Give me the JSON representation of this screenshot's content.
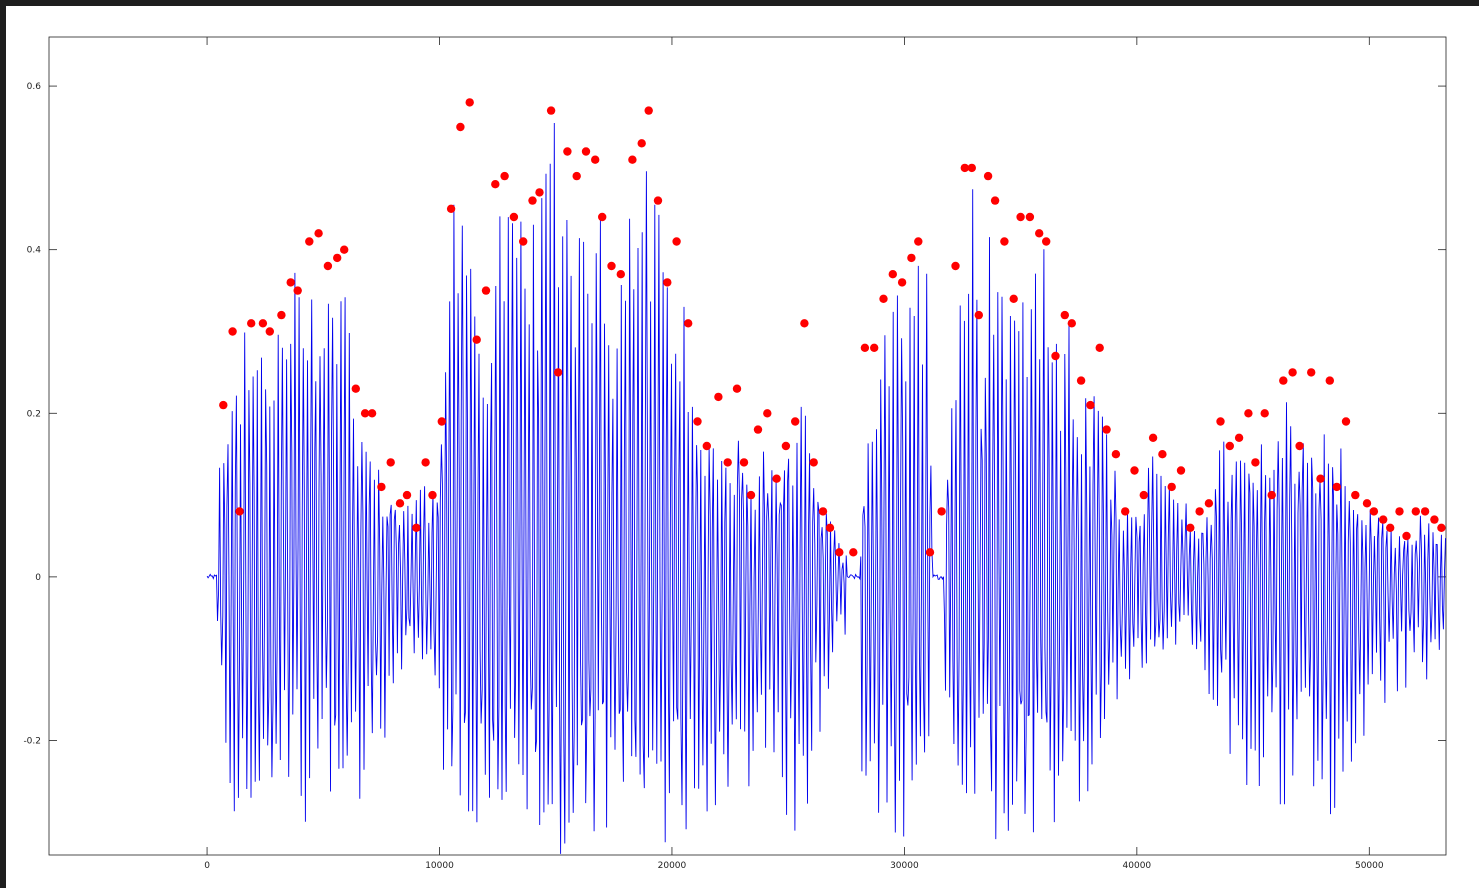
{
  "chart_data": {
    "type": "line",
    "title": "",
    "xlabel": "",
    "ylabel": "",
    "xlim": [
      -6800,
      53300
    ],
    "ylim": [
      -0.34,
      0.66
    ],
    "x_ticks": [
      0,
      10000,
      20000,
      30000,
      40000,
      50000
    ],
    "y_ticks": [
      -0.2,
      0,
      0.2,
      0.4,
      0.6
    ],
    "x_tick_labels": [
      "0",
      "10000",
      "20000",
      "30000",
      "40000",
      "50000"
    ],
    "y_tick_labels": [
      "-0.2",
      "0",
      "0.2",
      "0.4",
      "0.6"
    ],
    "grid": false,
    "legend": "none",
    "series": [
      {
        "kind": "waveform",
        "color": "#0000ee",
        "x_range": [
          0,
          53300
        ],
        "silent_segments": [
          [
            0,
            420
          ],
          [
            27500,
            28100
          ],
          [
            31200,
            31700
          ]
        ],
        "envelope_max": [
          [
            420,
            0.1
          ],
          [
            700,
            0.21
          ],
          [
            1000,
            0.3
          ],
          [
            1500,
            0.3
          ],
          [
            2000,
            0.31
          ],
          [
            2500,
            0.31
          ],
          [
            3000,
            0.32
          ],
          [
            3500,
            0.36
          ],
          [
            4000,
            0.41
          ],
          [
            4500,
            0.42
          ],
          [
            5000,
            0.38
          ],
          [
            5500,
            0.39
          ],
          [
            6000,
            0.4
          ],
          [
            6400,
            0.23
          ],
          [
            6800,
            0.2
          ],
          [
            7200,
            0.2
          ],
          [
            7500,
            0.11
          ],
          [
            8000,
            0.14
          ],
          [
            8300,
            0.09
          ],
          [
            8800,
            0.1
          ],
          [
            9300,
            0.14
          ],
          [
            9700,
            0.1
          ],
          [
            10100,
            0.19
          ],
          [
            10500,
            0.45
          ],
          [
            11000,
            0.55
          ],
          [
            11300,
            0.58
          ],
          [
            11600,
            0.29
          ],
          [
            12000,
            0.35
          ],
          [
            12500,
            0.48
          ],
          [
            13000,
            0.49
          ],
          [
            13500,
            0.44
          ],
          [
            14000,
            0.46
          ],
          [
            14500,
            0.47
          ],
          [
            14800,
            0.57
          ],
          [
            15100,
            0.59
          ],
          [
            15500,
            0.52
          ],
          [
            16000,
            0.49
          ],
          [
            16500,
            0.52
          ],
          [
            17000,
            0.51
          ],
          [
            17500,
            0.38
          ],
          [
            18000,
            0.37
          ],
          [
            18300,
            0.51
          ],
          [
            18700,
            0.53
          ],
          [
            19000,
            0.57
          ],
          [
            19400,
            0.46
          ],
          [
            19800,
            0.36
          ],
          [
            20200,
            0.41
          ],
          [
            20700,
            0.31
          ],
          [
            21000,
            0.19
          ],
          [
            21500,
            0.16
          ],
          [
            22000,
            0.22
          ],
          [
            22500,
            0.14
          ],
          [
            23000,
            0.23
          ],
          [
            23300,
            0.14
          ],
          [
            23600,
            0.1
          ],
          [
            24000,
            0.18
          ],
          [
            24500,
            0.12
          ],
          [
            25000,
            0.16
          ],
          [
            25400,
            0.19
          ],
          [
            25700,
            0.31
          ],
          [
            26100,
            0.14
          ],
          [
            26600,
            0.08
          ],
          [
            27000,
            0.06
          ],
          [
            27300,
            0.03
          ],
          [
            27500,
            0.02
          ],
          [
            28100,
            0.03
          ],
          [
            28500,
            0.28
          ],
          [
            29000,
            0.28
          ],
          [
            29400,
            0.34
          ],
          [
            29800,
            0.37
          ],
          [
            30200,
            0.36
          ],
          [
            30600,
            0.39
          ],
          [
            31000,
            0.41
          ],
          [
            31200,
            0.03
          ],
          [
            31700,
            0.08
          ],
          [
            32200,
            0.38
          ],
          [
            32700,
            0.5
          ],
          [
            33000,
            0.5
          ],
          [
            33300,
            0.32
          ],
          [
            33600,
            0.49
          ],
          [
            34000,
            0.46
          ],
          [
            34500,
            0.41
          ],
          [
            34800,
            0.34
          ],
          [
            35100,
            0.44
          ],
          [
            35500,
            0.44
          ],
          [
            35900,
            0.42
          ],
          [
            36200,
            0.41
          ],
          [
            36600,
            0.27
          ],
          [
            36900,
            0.32
          ],
          [
            37200,
            0.31
          ],
          [
            37600,
            0.24
          ],
          [
            38000,
            0.21
          ],
          [
            38400,
            0.28
          ],
          [
            38700,
            0.18
          ],
          [
            39100,
            0.15
          ],
          [
            39500,
            0.08
          ],
          [
            39900,
            0.13
          ],
          [
            40300,
            0.1
          ],
          [
            40700,
            0.17
          ],
          [
            41100,
            0.15
          ],
          [
            41500,
            0.11
          ],
          [
            41900,
            0.13
          ],
          [
            42300,
            0.06
          ],
          [
            42700,
            0.08
          ],
          [
            43100,
            0.09
          ],
          [
            43600,
            0.19
          ],
          [
            44000,
            0.16
          ],
          [
            44500,
            0.17
          ],
          [
            44800,
            0.2
          ],
          [
            45100,
            0.14
          ],
          [
            45500,
            0.2
          ],
          [
            45800,
            0.1
          ],
          [
            46200,
            0.24
          ],
          [
            46600,
            0.25
          ],
          [
            46900,
            0.16
          ],
          [
            47300,
            0.25
          ],
          [
            47700,
            0.12
          ],
          [
            48100,
            0.24
          ],
          [
            48500,
            0.11
          ],
          [
            48900,
            0.19
          ],
          [
            49300,
            0.1
          ],
          [
            49800,
            0.09
          ],
          [
            50200,
            0.08
          ],
          [
            50600,
            0.07
          ],
          [
            51000,
            0.06
          ],
          [
            51500,
            0.05
          ],
          [
            51900,
            0.07
          ],
          [
            52300,
            0.08
          ],
          [
            52700,
            0.07
          ],
          [
            53000,
            0.06
          ],
          [
            53300,
            0.06
          ]
        ],
        "envelope_min": [
          [
            420,
            -0.05
          ],
          [
            1000,
            -0.3
          ],
          [
            3000,
            -0.3
          ],
          [
            5000,
            -0.3
          ],
          [
            6500,
            -0.28
          ],
          [
            7500,
            -0.22
          ],
          [
            8500,
            -0.12
          ],
          [
            9500,
            -0.1
          ],
          [
            10300,
            -0.3
          ],
          [
            12000,
            -0.34
          ],
          [
            14000,
            -0.34
          ],
          [
            16000,
            -0.34
          ],
          [
            18000,
            -0.34
          ],
          [
            20000,
            -0.34
          ],
          [
            21000,
            -0.3
          ],
          [
            22500,
            -0.28
          ],
          [
            24000,
            -0.26
          ],
          [
            25500,
            -0.34
          ],
          [
            26500,
            -0.18
          ],
          [
            27300,
            -0.05
          ],
          [
            28300,
            -0.28
          ],
          [
            30000,
            -0.34
          ],
          [
            31000,
            -0.2
          ],
          [
            32500,
            -0.34
          ],
          [
            34000,
            -0.34
          ],
          [
            36000,
            -0.34
          ],
          [
            37500,
            -0.3
          ],
          [
            39000,
            -0.2
          ],
          [
            40500,
            -0.1
          ],
          [
            42000,
            -0.08
          ],
          [
            43500,
            -0.2
          ],
          [
            45000,
            -0.28
          ],
          [
            47000,
            -0.3
          ],
          [
            48500,
            -0.3
          ],
          [
            50000,
            -0.18
          ],
          [
            51500,
            -0.14
          ],
          [
            53300,
            -0.12
          ]
        ]
      },
      {
        "kind": "peaks",
        "color": "#ff0000",
        "points": [
          [
            700,
            0.21
          ],
          [
            1100,
            0.3
          ],
          [
            1400,
            0.08
          ],
          [
            1900,
            0.31
          ],
          [
            2400,
            0.31
          ],
          [
            2700,
            0.3
          ],
          [
            3200,
            0.32
          ],
          [
            3600,
            0.36
          ],
          [
            3900,
            0.35
          ],
          [
            4400,
            0.41
          ],
          [
            4800,
            0.42
          ],
          [
            5200,
            0.38
          ],
          [
            5600,
            0.39
          ],
          [
            5900,
            0.4
          ],
          [
            6400,
            0.23
          ],
          [
            6800,
            0.2
          ],
          [
            7100,
            0.2
          ],
          [
            7500,
            0.11
          ],
          [
            7900,
            0.14
          ],
          [
            8300,
            0.09
          ],
          [
            8600,
            0.1
          ],
          [
            9000,
            0.06
          ],
          [
            9400,
            0.14
          ],
          [
            9700,
            0.1
          ],
          [
            10100,
            0.19
          ],
          [
            10500,
            0.45
          ],
          [
            10900,
            0.55
          ],
          [
            11300,
            0.58
          ],
          [
            11600,
            0.29
          ],
          [
            12000,
            0.35
          ],
          [
            12400,
            0.48
          ],
          [
            12800,
            0.49
          ],
          [
            13200,
            0.44
          ],
          [
            13600,
            0.41
          ],
          [
            14000,
            0.46
          ],
          [
            14300,
            0.47
          ],
          [
            14800,
            0.57
          ],
          [
            15100,
            0.25
          ],
          [
            15500,
            0.52
          ],
          [
            15900,
            0.49
          ],
          [
            16300,
            0.52
          ],
          [
            16700,
            0.51
          ],
          [
            17000,
            0.44
          ],
          [
            17400,
            0.38
          ],
          [
            17800,
            0.37
          ],
          [
            18300,
            0.51
          ],
          [
            18700,
            0.53
          ],
          [
            19000,
            0.57
          ],
          [
            19400,
            0.46
          ],
          [
            19800,
            0.36
          ],
          [
            20200,
            0.41
          ],
          [
            20700,
            0.31
          ],
          [
            21100,
            0.19
          ],
          [
            21500,
            0.16
          ],
          [
            22000,
            0.22
          ],
          [
            22400,
            0.14
          ],
          [
            22800,
            0.23
          ],
          [
            23100,
            0.14
          ],
          [
            23400,
            0.1
          ],
          [
            23700,
            0.18
          ],
          [
            24100,
            0.2
          ],
          [
            24500,
            0.12
          ],
          [
            24900,
            0.16
          ],
          [
            25300,
            0.19
          ],
          [
            25700,
            0.31
          ],
          [
            26100,
            0.14
          ],
          [
            26500,
            0.08
          ],
          [
            26800,
            0.06
          ],
          [
            27200,
            0.03
          ],
          [
            27800,
            0.03
          ],
          [
            28300,
            0.28
          ],
          [
            28700,
            0.28
          ],
          [
            29100,
            0.34
          ],
          [
            29500,
            0.37
          ],
          [
            29900,
            0.36
          ],
          [
            30300,
            0.39
          ],
          [
            30600,
            0.41
          ],
          [
            31100,
            0.03
          ],
          [
            31600,
            0.08
          ],
          [
            32200,
            0.38
          ],
          [
            32600,
            0.5
          ],
          [
            32900,
            0.5
          ],
          [
            33200,
            0.32
          ],
          [
            33600,
            0.49
          ],
          [
            33900,
            0.46
          ],
          [
            34300,
            0.41
          ],
          [
            34700,
            0.34
          ],
          [
            35000,
            0.44
          ],
          [
            35400,
            0.44
          ],
          [
            35800,
            0.42
          ],
          [
            36100,
            0.41
          ],
          [
            36500,
            0.27
          ],
          [
            36900,
            0.32
          ],
          [
            37200,
            0.31
          ],
          [
            37600,
            0.24
          ],
          [
            38000,
            0.21
          ],
          [
            38400,
            0.28
          ],
          [
            38700,
            0.18
          ],
          [
            39100,
            0.15
          ],
          [
            39500,
            0.08
          ],
          [
            39900,
            0.13
          ],
          [
            40300,
            0.1
          ],
          [
            40700,
            0.17
          ],
          [
            41100,
            0.15
          ],
          [
            41500,
            0.11
          ],
          [
            41900,
            0.13
          ],
          [
            42300,
            0.06
          ],
          [
            42700,
            0.08
          ],
          [
            43100,
            0.09
          ],
          [
            43600,
            0.19
          ],
          [
            44000,
            0.16
          ],
          [
            44400,
            0.17
          ],
          [
            44800,
            0.2
          ],
          [
            45100,
            0.14
          ],
          [
            45500,
            0.2
          ],
          [
            45800,
            0.1
          ],
          [
            46300,
            0.24
          ],
          [
            46700,
            0.25
          ],
          [
            47000,
            0.16
          ],
          [
            47500,
            0.25
          ],
          [
            47900,
            0.12
          ],
          [
            48300,
            0.24
          ],
          [
            48600,
            0.11
          ],
          [
            49000,
            0.19
          ],
          [
            49400,
            0.1
          ],
          [
            49900,
            0.09
          ],
          [
            50200,
            0.08
          ],
          [
            50600,
            0.07
          ],
          [
            50900,
            0.06
          ],
          [
            51300,
            0.08
          ],
          [
            51600,
            0.05
          ],
          [
            52000,
            0.08
          ],
          [
            52400,
            0.08
          ],
          [
            52800,
            0.07
          ],
          [
            53100,
            0.06
          ]
        ]
      }
    ]
  }
}
